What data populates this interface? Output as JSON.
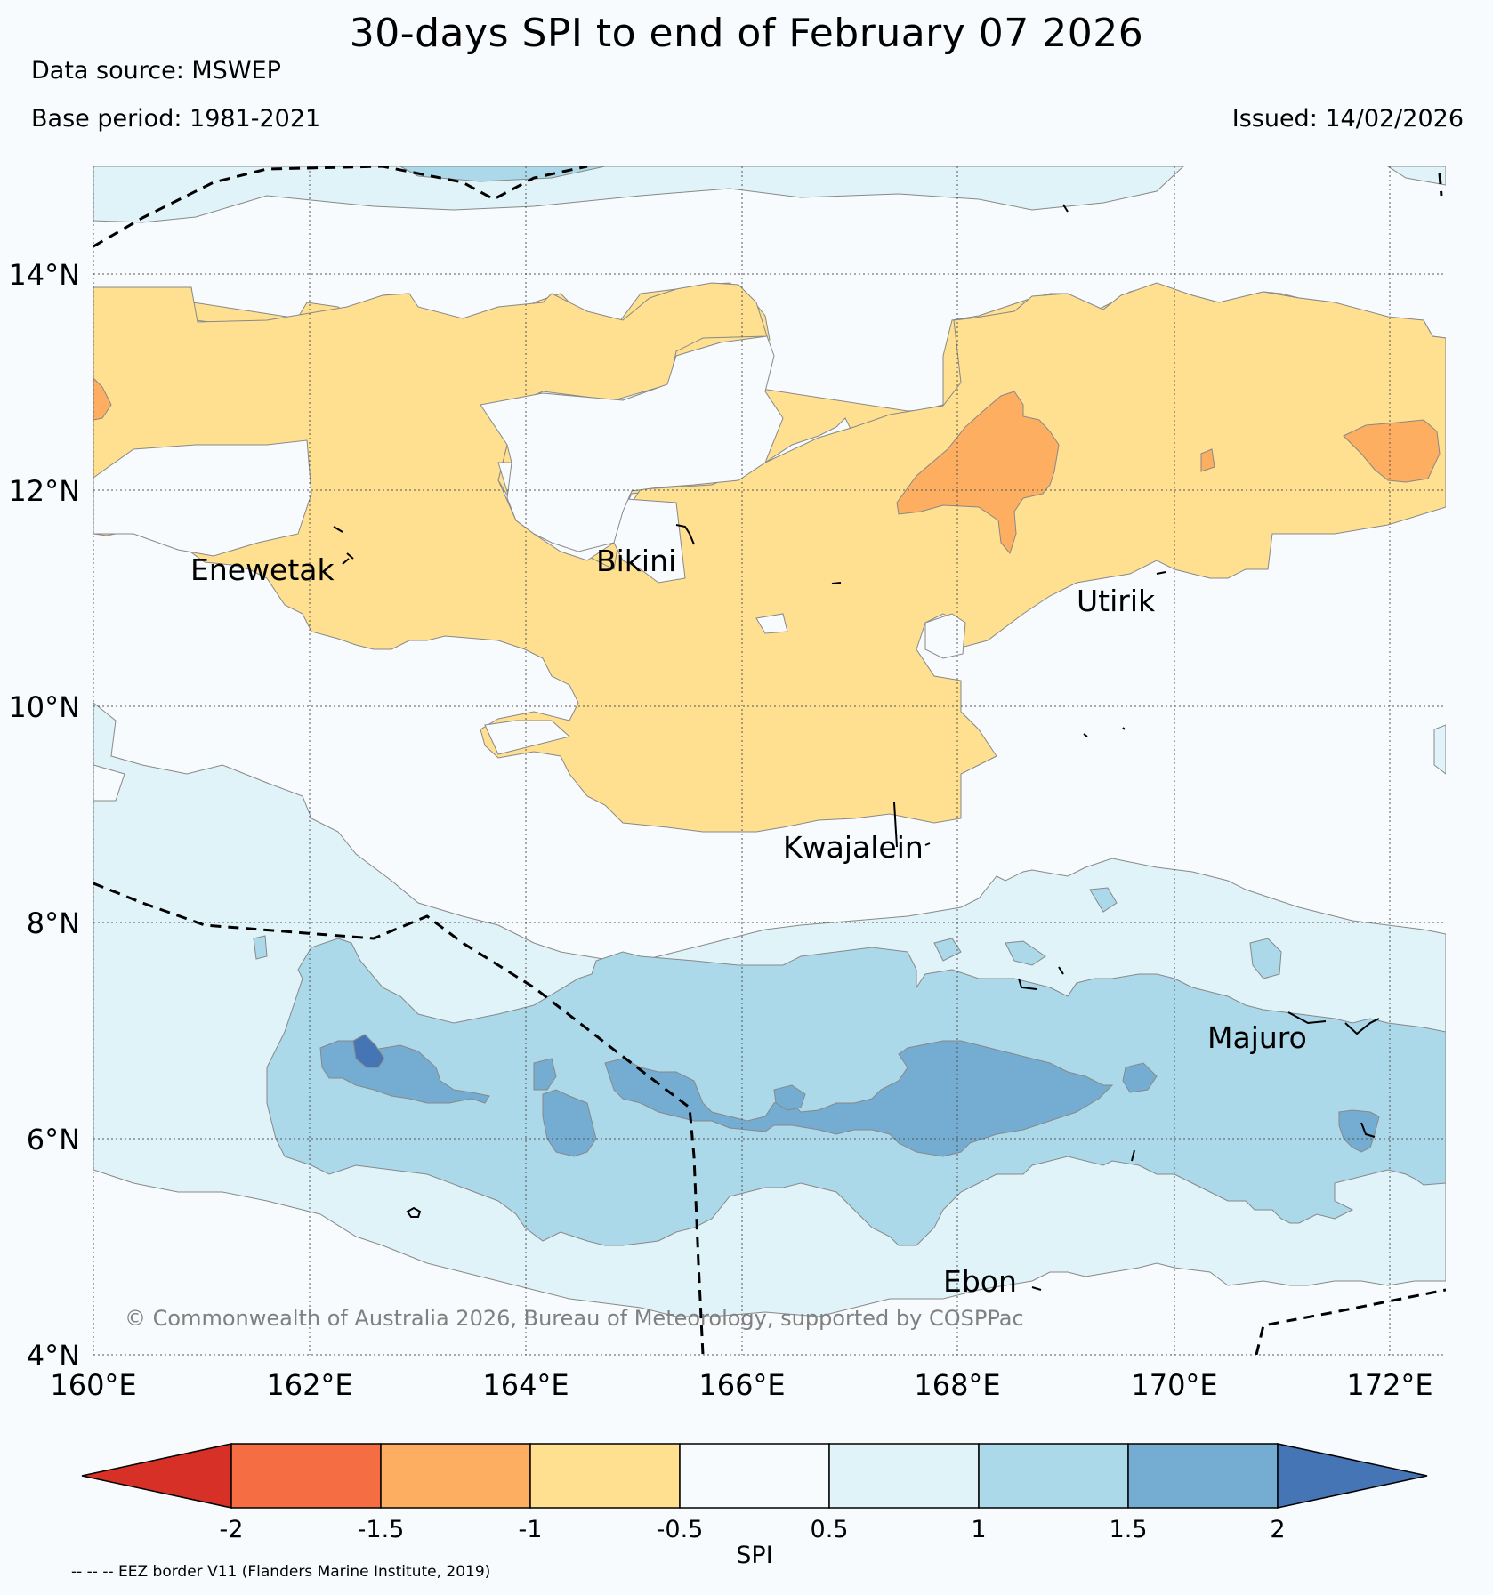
{
  "title": "30-days SPI to end of February 07 2026",
  "data_source": "Data source: MSWEP",
  "base_period": "Base period: 1981-2021",
  "issued": "Issued: 14/02/2026",
  "copyright": "© Commonwealth of Australia 2026, Bureau of Meteorology, supported by COSPPac",
  "footnote": "-- -- -- EEZ border V11 (Flanders Marine Institute, 2019)",
  "map": {
    "lon_ticks": [
      "160°E",
      "162°E",
      "164°E",
      "166°E",
      "168°E",
      "170°E",
      "172°E"
    ],
    "lat_ticks": [
      "4°N",
      "6°N",
      "8°N",
      "10°N",
      "12°N",
      "14°N"
    ],
    "places": [
      {
        "name": "Enewetak"
      },
      {
        "name": "Bikini"
      },
      {
        "name": "Utirik"
      },
      {
        "name": "Kwajalein"
      },
      {
        "name": "Majuro"
      },
      {
        "name": "Ebon"
      }
    ]
  },
  "colorbar": {
    "label": "SPI",
    "ticks": [
      "-2",
      "-1.5",
      "-1",
      "-0.5",
      "0.5",
      "1",
      "1.5",
      "2"
    ],
    "colors": [
      "#d73027",
      "#f46d43",
      "#fdae61",
      "#fee090",
      "#f7fbfd",
      "#e0f3f8",
      "#abd9e9",
      "#74add1",
      "#4575b4"
    ]
  },
  "colors": {
    "dry_moderate": "#fee090",
    "dry_severe": "#fdae61",
    "wet_moderate": "#e0f3f8",
    "wet_high": "#abd9e9",
    "wet_very_high": "#74add1",
    "wet_extreme": "#4575b4"
  }
}
